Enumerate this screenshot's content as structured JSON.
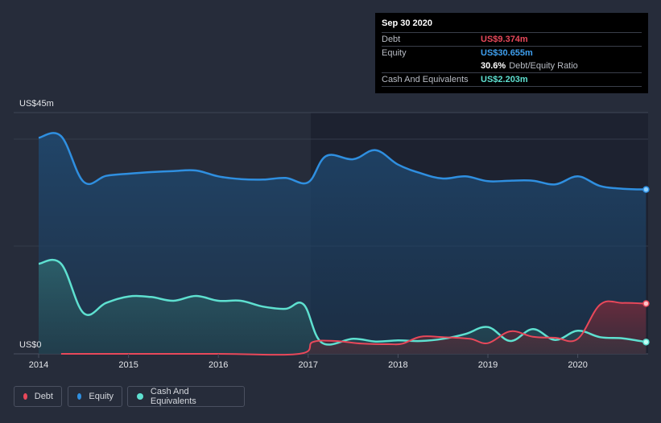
{
  "chart_data": {
    "type": "area",
    "y_max_label": "US$45m",
    "y_min_label": "US$0",
    "ylim": [
      0,
      45
    ],
    "xlim": [
      2014.0,
      2020.76
    ],
    "x_ticks": [
      "2014",
      "2015",
      "2016",
      "2017",
      "2018",
      "2019",
      "2020"
    ],
    "series": [
      {
        "name": "Debt",
        "color": "#e8485a",
        "points": [
          [
            2014.25,
            0
          ],
          [
            2015,
            0
          ],
          [
            2016,
            0
          ],
          [
            2016.9,
            0
          ],
          [
            2017.05,
            2.2
          ],
          [
            2017.3,
            2.4
          ],
          [
            2017.6,
            1.9
          ],
          [
            2017.9,
            1.8
          ],
          [
            2018.05,
            1.9
          ],
          [
            2018.25,
            3.2
          ],
          [
            2018.5,
            3.1
          ],
          [
            2018.8,
            2.8
          ],
          [
            2019.0,
            2.0
          ],
          [
            2019.25,
            4.2
          ],
          [
            2019.5,
            3.2
          ],
          [
            2019.75,
            3.0
          ],
          [
            2020.0,
            2.8
          ],
          [
            2020.25,
            9.2
          ],
          [
            2020.5,
            9.5
          ],
          [
            2020.76,
            9.374
          ]
        ]
      },
      {
        "name": "Equity",
        "color": "#2f8fe0",
        "points": [
          [
            2014.0,
            40.3
          ],
          [
            2014.25,
            40.6
          ],
          [
            2014.5,
            32.1
          ],
          [
            2014.75,
            33.2
          ],
          [
            2015.0,
            33.6
          ],
          [
            2015.25,
            33.9
          ],
          [
            2015.5,
            34.1
          ],
          [
            2015.75,
            34.2
          ],
          [
            2016.0,
            33.1
          ],
          [
            2016.25,
            32.6
          ],
          [
            2016.5,
            32.5
          ],
          [
            2016.75,
            32.8
          ],
          [
            2017.0,
            32.0
          ],
          [
            2017.2,
            36.9
          ],
          [
            2017.5,
            36.3
          ],
          [
            2017.75,
            38.0
          ],
          [
            2018.0,
            35.3
          ],
          [
            2018.25,
            33.7
          ],
          [
            2018.5,
            32.7
          ],
          [
            2018.75,
            33.1
          ],
          [
            2019.0,
            32.2
          ],
          [
            2019.25,
            32.3
          ],
          [
            2019.5,
            32.3
          ],
          [
            2019.75,
            31.6
          ],
          [
            2020.0,
            33.1
          ],
          [
            2020.25,
            31.3
          ],
          [
            2020.5,
            30.8
          ],
          [
            2020.76,
            30.655
          ]
        ]
      },
      {
        "name": "Cash And Equivalents",
        "color": "#5ee0d0",
        "points": [
          [
            2014.0,
            16.8
          ],
          [
            2014.25,
            16.8
          ],
          [
            2014.5,
            7.6
          ],
          [
            2014.75,
            9.5
          ],
          [
            2015.0,
            10.7
          ],
          [
            2015.25,
            10.6
          ],
          [
            2015.5,
            9.9
          ],
          [
            2015.75,
            10.8
          ],
          [
            2016.0,
            9.9
          ],
          [
            2016.25,
            9.9
          ],
          [
            2016.5,
            8.8
          ],
          [
            2016.75,
            8.4
          ],
          [
            2016.95,
            9.2
          ],
          [
            2017.15,
            2.1
          ],
          [
            2017.5,
            2.8
          ],
          [
            2017.75,
            2.3
          ],
          [
            2018.0,
            2.5
          ],
          [
            2018.25,
            2.4
          ],
          [
            2018.5,
            2.8
          ],
          [
            2018.75,
            3.7
          ],
          [
            2019.0,
            5.0
          ],
          [
            2019.25,
            2.4
          ],
          [
            2019.5,
            4.6
          ],
          [
            2019.75,
            2.6
          ],
          [
            2020.0,
            4.3
          ],
          [
            2020.25,
            3.1
          ],
          [
            2020.5,
            2.9
          ],
          [
            2020.76,
            2.203
          ]
        ]
      }
    ]
  },
  "tooltip": {
    "date": "Sep 30 2020",
    "debt_label": "Debt",
    "debt_value": "US$9.374m",
    "equity_label": "Equity",
    "equity_value": "US$30.655m",
    "ratio_value": "30.6%",
    "ratio_text": "Debt/Equity Ratio",
    "cash_label": "Cash And Equivalents",
    "cash_value": "US$2.203m"
  },
  "legend": {
    "debt": "Debt",
    "equity": "Equity",
    "cash": "Cash And Equivalents"
  },
  "colors": {
    "background": "#262c3a",
    "plot_highlight": "#1c212c",
    "debt": "#e8485a",
    "equity": "#2f8fe0",
    "cash": "#5ee0d0"
  }
}
